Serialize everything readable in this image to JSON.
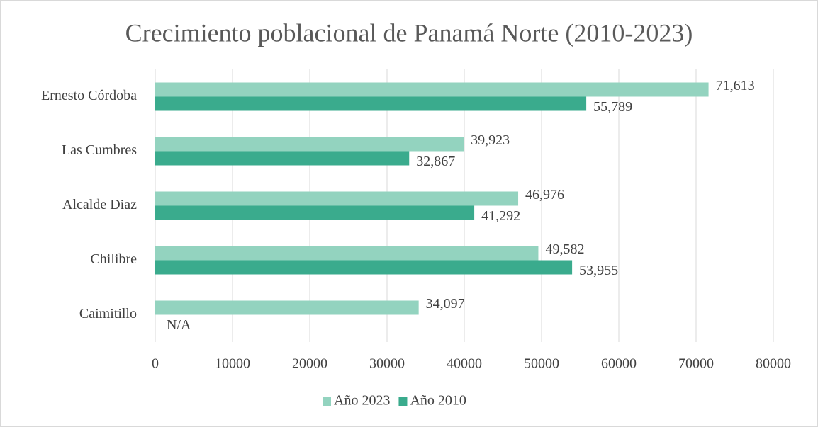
{
  "chart_data": {
    "type": "bar",
    "orientation": "horizontal",
    "title": "Crecimiento poblacional de Panamá Norte (2010-2023)",
    "categories": [
      "Ernesto Córdoba",
      "Las Cumbres",
      "Alcalde Diaz",
      "Chilibre",
      "Caimitillo"
    ],
    "series": [
      {
        "name": "Año 2023",
        "color": "#93d3bf",
        "values": [
          71613,
          39923,
          46976,
          49582,
          34097
        ],
        "value_labels": [
          "71,613",
          "39,923",
          "46,976",
          "49,582",
          "34,097"
        ]
      },
      {
        "name": "Año 2010",
        "color": "#3aab8d",
        "values": [
          55789,
          32867,
          41292,
          53955,
          null
        ],
        "value_labels": [
          "55,789",
          "32,867",
          "41,292",
          "53,955",
          "N/A"
        ]
      }
    ],
    "xlim": [
      0,
      80000
    ],
    "xticks": [
      0,
      10000,
      20000,
      30000,
      40000,
      50000,
      60000,
      70000,
      80000
    ],
    "grid": true,
    "legend": "bottom"
  }
}
